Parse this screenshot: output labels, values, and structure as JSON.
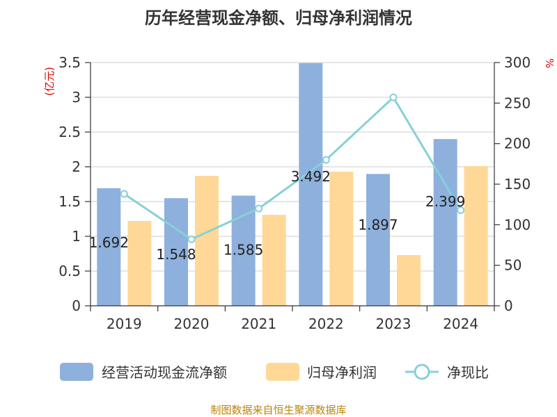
{
  "chart_data": {
    "type": "bar",
    "title": "历年经营现金净额、归母净利润情况",
    "categories": [
      "2019",
      "2020",
      "2021",
      "2022",
      "2023",
      "2024"
    ],
    "series": [
      {
        "name": "经营活动现金流净额",
        "axis": "left",
        "type": "bar",
        "color": "#8eb0dc",
        "values": [
          1.692,
          1.548,
          1.585,
          3.492,
          1.897,
          2.399
        ],
        "labels": [
          "1.692",
          "1.548",
          "1.585",
          "3.492",
          "1.897",
          "2.399"
        ]
      },
      {
        "name": "归母净利润",
        "axis": "left",
        "type": "bar",
        "color": "#ffd898",
        "values": [
          1.22,
          1.87,
          1.31,
          1.93,
          0.73,
          2.01
        ]
      },
      {
        "name": "净现比",
        "axis": "right",
        "type": "line",
        "color": "#86d0d8",
        "values": [
          138,
          82,
          120,
          180,
          257,
          118
        ]
      }
    ],
    "left_axis": {
      "unit": "(亿元)",
      "ylim": [
        0,
        3.5
      ],
      "ticks": [
        0,
        0.5,
        1,
        1.5,
        2,
        2.5,
        3,
        3.5
      ],
      "tick_labels": [
        "0",
        "0.5",
        "1",
        "1.5",
        "2",
        "2.5",
        "3",
        "3.5"
      ]
    },
    "right_axis": {
      "unit": "%",
      "ylim": [
        0,
        300
      ],
      "ticks": [
        0,
        50,
        100,
        150,
        200,
        250,
        300
      ],
      "tick_labels": [
        "0",
        "50",
        "100",
        "150",
        "200",
        "250",
        "300"
      ]
    },
    "grid": true,
    "legend_position": "bottom"
  },
  "source": "制图数据来自恒生聚源数据库"
}
